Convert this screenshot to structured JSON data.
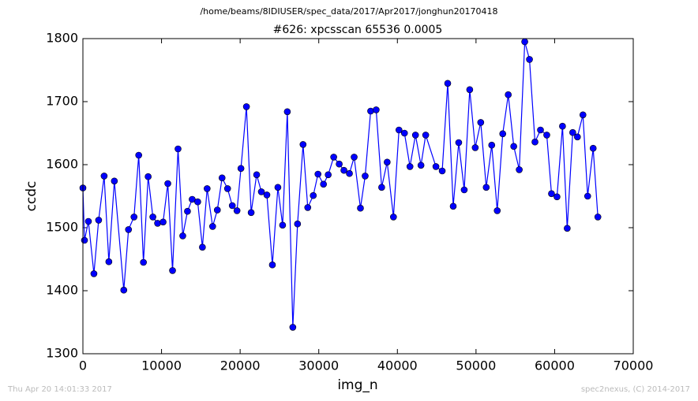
{
  "chart_data": {
    "type": "line",
    "suptitle": "/home/beams/8IDIUSER/spec_data/2017/Apr2017/jonghun20170418",
    "title": "#626: xpcsscan 65536 0.0005",
    "xlabel": "img_n",
    "ylabel": "ccdc",
    "footer_left": "Thu Apr 20 14:01:33 2017",
    "footer_right": "spec2nexus, (C) 2014-2017",
    "xlim": [
      0,
      70000
    ],
    "xticks": [
      0,
      10000,
      20000,
      30000,
      40000,
      50000,
      60000,
      70000
    ],
    "ylim": [
      1300,
      1800
    ],
    "yticks": [
      1300,
      1400,
      1500,
      1600,
      1700,
      1800
    ],
    "grid": false,
    "x": [
      0,
      200,
      700,
      1400,
      2000,
      2700,
      3300,
      4000,
      5200,
      5800,
      6500,
      7100,
      7700,
      8300,
      8900,
      9500,
      10200,
      10800,
      11400,
      12100,
      12700,
      13300,
      13900,
      14600,
      15200,
      15800,
      16500,
      17100,
      17700,
      18400,
      19000,
      19600,
      20100,
      20800,
      21400,
      22100,
      22700,
      23400,
      24100,
      24800,
      25400,
      26000,
      26700,
      27300,
      28000,
      28600,
      29300,
      29900,
      30600,
      31200,
      31900,
      32600,
      33200,
      33900,
      34500,
      35300,
      35900,
      36600,
      37300,
      38000,
      38700,
      39500,
      40200,
      40900,
      41600,
      42300,
      43000,
      43600,
      44900,
      45700,
      46400,
      47100,
      47800,
      48500,
      49200,
      49900,
      50600,
      51300,
      52000,
      52700,
      53400,
      54100,
      54800,
      55500,
      56200,
      56800,
      57500,
      58200,
      59000,
      59600,
      60300,
      61000,
      61600,
      62300,
      62900,
      63600,
      64200,
      64900,
      65500
    ],
    "series": [
      {
        "color": "#0000ff",
        "values": [
          1563,
          1480,
          1510,
          1427,
          1512,
          1582,
          1446,
          1574,
          1401,
          1497,
          1517,
          1615,
          1445,
          1581,
          1517,
          1507,
          1509,
          1570,
          1432,
          1625,
          1487,
          1526,
          1545,
          1541,
          1469,
          1562,
          1502,
          1528,
          1579,
          1562,
          1535,
          1527,
          1594,
          1692,
          1524,
          1584,
          1557,
          1552,
          1441,
          1564,
          1504,
          1684,
          1342,
          1506,
          1632,
          1532,
          1551,
          1585,
          1569,
          1584,
          1612,
          1601,
          1591,
          1586,
          1612,
          1531,
          1582,
          1685,
          1687,
          1564,
          1604,
          1517,
          1655,
          1650,
          1597,
          1647,
          1599,
          1647,
          1597,
          1590,
          1729,
          1534,
          1635,
          1560,
          1719,
          1627,
          1667,
          1564,
          1631,
          1527,
          1649,
          1711,
          1629,
          1592,
          1795,
          1767,
          1636,
          1655,
          1647,
          1554,
          1549,
          1661,
          1499,
          1651,
          1644,
          1679,
          1550,
          1626,
          1517
        ]
      }
    ]
  }
}
